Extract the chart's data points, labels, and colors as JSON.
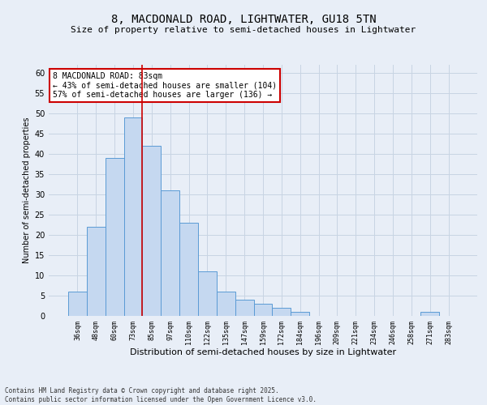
{
  "title_line1": "8, MACDONALD ROAD, LIGHTWATER, GU18 5TN",
  "title_line2": "Size of property relative to semi-detached houses in Lightwater",
  "xlabel": "Distribution of semi-detached houses by size in Lightwater",
  "ylabel": "Number of semi-detached properties",
  "categories": [
    "36sqm",
    "48sqm",
    "60sqm",
    "73sqm",
    "85sqm",
    "97sqm",
    "110sqm",
    "122sqm",
    "135sqm",
    "147sqm",
    "159sqm",
    "172sqm",
    "184sqm",
    "196sqm",
    "209sqm",
    "221sqm",
    "234sqm",
    "246sqm",
    "258sqm",
    "271sqm",
    "283sqm"
  ],
  "values": [
    6,
    22,
    39,
    49,
    42,
    31,
    23,
    11,
    6,
    4,
    3,
    2,
    1,
    0,
    0,
    0,
    0,
    0,
    0,
    1,
    0
  ],
  "bar_color": "#c5d8f0",
  "bar_edge_color": "#5b9bd5",
  "grid_color": "#c8d4e3",
  "background_color": "#e8eef7",
  "vline_x_index": 4,
  "vline_color": "#cc0000",
  "annotation_title": "8 MACDONALD ROAD: 83sqm",
  "annotation_line1": "← 43% of semi-detached houses are smaller (104)",
  "annotation_line2": "57% of semi-detached houses are larger (136) →",
  "annotation_box_color": "#cc0000",
  "footer_line1": "Contains HM Land Registry data © Crown copyright and database right 2025.",
  "footer_line2": "Contains public sector information licensed under the Open Government Licence v3.0.",
  "ylim": [
    0,
    62
  ],
  "yticks": [
    0,
    5,
    10,
    15,
    20,
    25,
    30,
    35,
    40,
    45,
    50,
    55,
    60
  ],
  "title1_fontsize": 10,
  "title2_fontsize": 8,
  "xlabel_fontsize": 8,
  "ylabel_fontsize": 7,
  "xtick_fontsize": 6,
  "ytick_fontsize": 7,
  "annot_fontsize": 7,
  "footer_fontsize": 5.5
}
